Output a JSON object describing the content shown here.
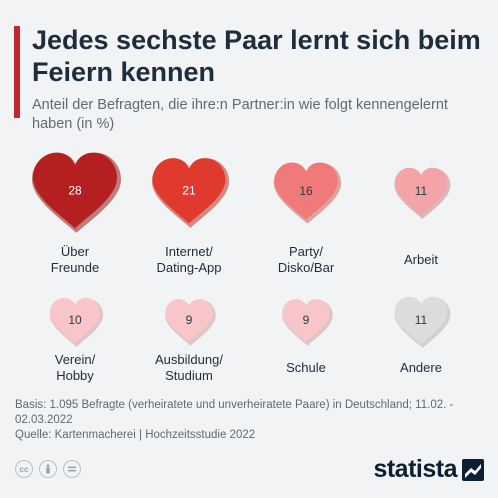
{
  "header": {
    "title": "Jedes sechste Paar lernt sich beim Feiern kennen",
    "subtitle": "Anteil der Befragten, die ihre:n Partner:in wie folgt kennengelernt haben (in %)"
  },
  "chart_data": {
    "type": "bubble-hearts",
    "unit": "%",
    "categories": [
      "Über\nFreunde",
      "Internet/\nDating-App",
      "Party/\nDisko/Bar",
      "Arbeit",
      "Verein/\nHobby",
      "Ausbildung/\nStudium",
      "Schule",
      "Andere"
    ],
    "values": [
      28,
      21,
      16,
      11,
      10,
      9,
      9,
      11
    ],
    "colors": [
      "#b3201f",
      "#e03a2e",
      "#f07a7a",
      "#f4a3a6",
      "#f8c5c8",
      "#f8c5c8",
      "#f8c5c8",
      "#dcdcdc"
    ],
    "value_labels": [
      "28",
      "21",
      "16",
      "11",
      "10",
      "9",
      "9",
      "11"
    ]
  },
  "colors": {
    "accent": "#c0282d",
    "title": "#1d2d3e",
    "text": "#5f6a73"
  },
  "footer": {
    "basis": "Basis: 1.095 Befragte (verheiratete und unverheiratete Paare) in Deutschland; 11.02. - 02.03.2022",
    "source": "Quelle: Kartenmacherei | Hochzeitsstudie 2022"
  },
  "license_icons": [
    "cc-icon",
    "by-icon",
    "nd-icon"
  ],
  "brand": {
    "name": "statista"
  }
}
